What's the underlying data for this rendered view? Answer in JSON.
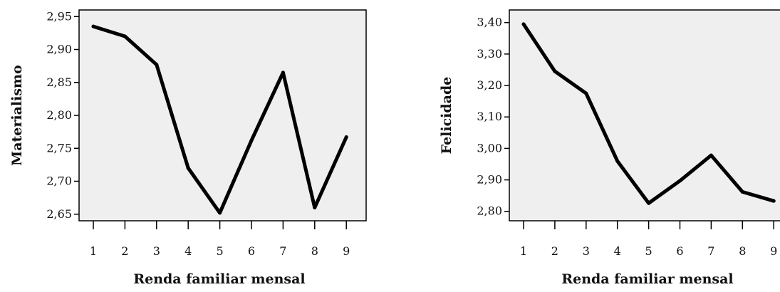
{
  "chart_data": [
    {
      "type": "line",
      "title": "",
      "xlabel": "Renda familiar mensal",
      "ylabel": "Materialismo",
      "x": [
        1,
        2,
        3,
        4,
        5,
        6,
        7,
        8,
        9
      ],
      "x_tick_labels": [
        "1",
        "2",
        "3",
        "4",
        "5",
        "6",
        "7",
        "8",
        "9"
      ],
      "values": [
        2.935,
        2.92,
        2.877,
        2.72,
        2.652,
        2.762,
        2.865,
        2.66,
        2.767
      ],
      "y_ticks": [
        2.65,
        2.7,
        2.75,
        2.8,
        2.85,
        2.9,
        2.95
      ],
      "y_tick_labels": [
        "2,65",
        "2,70",
        "2,75",
        "2,80",
        "2,85",
        "2,90",
        "2,95"
      ],
      "ylim": [
        2.64,
        2.96
      ],
      "grid": false,
      "line_color": "#000000",
      "plot_background": "#efefef"
    },
    {
      "type": "line",
      "title": "",
      "xlabel": "Renda familiar mensal",
      "ylabel": "Felicidade",
      "x": [
        1,
        2,
        3,
        4,
        5,
        6,
        7,
        8,
        9
      ],
      "x_tick_labels": [
        "1",
        "2",
        "3",
        "4",
        "5",
        "6",
        "7",
        "8",
        "9"
      ],
      "values": [
        3.395,
        3.245,
        3.175,
        2.96,
        2.826,
        2.897,
        2.978,
        2.862,
        2.833
      ],
      "y_ticks": [
        2.8,
        2.9,
        3.0,
        3.1,
        3.2,
        3.3,
        3.4
      ],
      "y_tick_labels": [
        "2,80",
        "2,90",
        "3,00",
        "3,10",
        "3,20",
        "3,30",
        "3,40"
      ],
      "ylim": [
        2.77,
        3.44
      ],
      "grid": false,
      "line_color": "#000000",
      "plot_background": "#efefef"
    }
  ]
}
